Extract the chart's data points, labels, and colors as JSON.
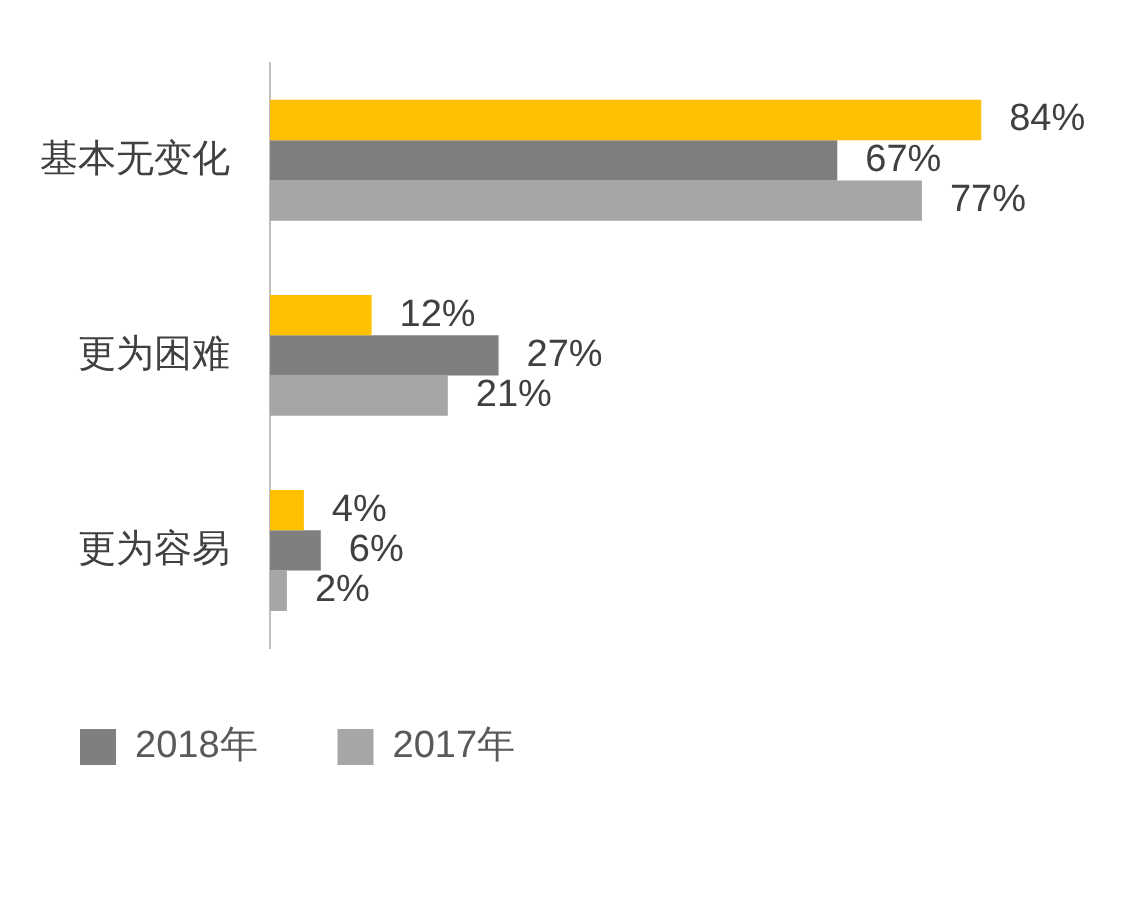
{
  "chart_data": {
    "type": "bar",
    "orientation": "horizontal",
    "categories": [
      "基本无变化",
      "更为困难",
      "更为容易"
    ],
    "series": [
      {
        "color": "#ffc000",
        "values": [
          84,
          12,
          4
        ],
        "value_labels": [
          "84%",
          "12%",
          "4%"
        ]
      },
      {
        "name": "2018年",
        "color": "#7f7f7f",
        "values": [
          67,
          27,
          6
        ],
        "value_labels": [
          "67%",
          "27%",
          "6%"
        ]
      },
      {
        "name": "2017年",
        "color": "#a6a6a6",
        "values": [
          77,
          21,
          2
        ],
        "value_labels": [
          "77%",
          "21%",
          "2%"
        ]
      }
    ],
    "grid": false,
    "legend": "bottom left"
  }
}
